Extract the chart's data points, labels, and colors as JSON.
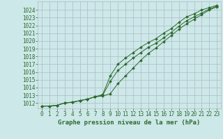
{
  "x": [
    0,
    1,
    2,
    3,
    4,
    5,
    6,
    7,
    8,
    9,
    10,
    11,
    12,
    13,
    14,
    15,
    16,
    17,
    18,
    19,
    20,
    21,
    22,
    23
  ],
  "y_upper": [
    1011.6,
    1011.6,
    1011.7,
    1012.0,
    1012.1,
    1012.3,
    1012.5,
    1012.8,
    1013.1,
    1015.5,
    1017.0,
    1017.8,
    1018.5,
    1019.2,
    1019.8,
    1020.3,
    1021.0,
    1021.6,
    1022.4,
    1023.1,
    1023.5,
    1024.0,
    1024.3,
    1024.6
  ],
  "y_main": [
    1011.6,
    1011.6,
    1011.7,
    1012.0,
    1012.1,
    1012.3,
    1012.5,
    1012.8,
    1013.0,
    1014.8,
    1016.2,
    1017.0,
    1017.8,
    1018.5,
    1019.2,
    1019.7,
    1020.4,
    1021.1,
    1021.9,
    1022.6,
    1023.1,
    1023.6,
    1024.1,
    1024.5
  ],
  "y_lower": [
    1011.6,
    1011.6,
    1011.7,
    1012.0,
    1012.1,
    1012.3,
    1012.5,
    1012.8,
    1012.9,
    1013.2,
    1014.5,
    1015.5,
    1016.5,
    1017.5,
    1018.4,
    1019.1,
    1019.9,
    1020.7,
    1021.5,
    1022.2,
    1022.8,
    1023.4,
    1024.0,
    1024.4
  ],
  "yticks": [
    1012,
    1013,
    1014,
    1015,
    1016,
    1017,
    1018,
    1019,
    1020,
    1021,
    1022,
    1023,
    1024
  ],
  "xticks": [
    0,
    1,
    2,
    3,
    4,
    5,
    6,
    7,
    8,
    9,
    10,
    11,
    12,
    13,
    14,
    15,
    16,
    17,
    18,
    19,
    20,
    21,
    22,
    23
  ],
  "xlabel": "Graphe pression niveau de la mer (hPa)",
  "line_color": "#2d6a2d",
  "marker": "D",
  "marker_size": 2.0,
  "bg_color": "#cce8e8",
  "grid_color": "#b0b8c8",
  "text_color": "#2d6a2d",
  "tick_fontsize": 5.5,
  "xlabel_fontsize": 6.5
}
